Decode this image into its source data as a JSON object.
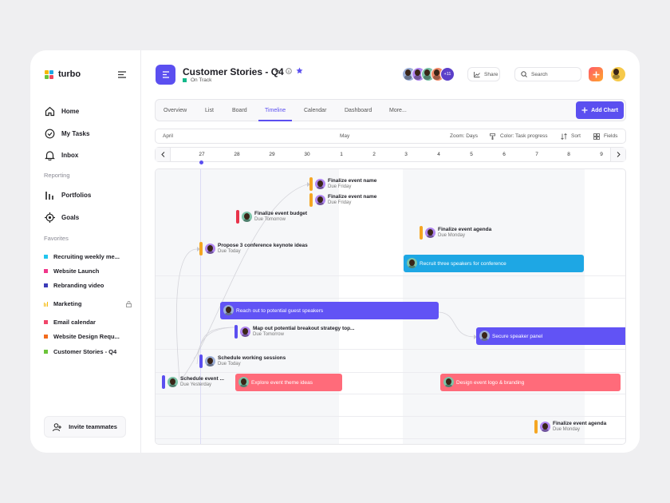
{
  "app": {
    "name": "turbo"
  },
  "sidebar": {
    "nav": [
      {
        "label": "Home",
        "icon": "home-icon"
      },
      {
        "label": "My Tasks",
        "icon": "check-circle-icon"
      },
      {
        "label": "Inbox",
        "icon": "bell-icon"
      }
    ],
    "reporting_label": "Reporting",
    "reporting": [
      {
        "label": "Portfolios",
        "icon": "bar-chart-icon"
      },
      {
        "label": "Goals",
        "icon": "target-icon"
      }
    ],
    "favorites_label": "Favorites",
    "favorites": [
      {
        "label": "Recruiting weekly me...",
        "color": "#22c5ee"
      },
      {
        "label": "Website Launch",
        "color": "#f0368a"
      },
      {
        "label": "Rebranding video",
        "color": "#3b3bb8"
      },
      {
        "label": "Marketing",
        "color": "#f5b800",
        "locked": true
      },
      {
        "label": "Email calendar",
        "color": "#f0456a"
      },
      {
        "label": "Website Design Requ...",
        "color": "#f26b1d"
      },
      {
        "label": "Customer Stories - Q4",
        "color": "#6cc43a"
      }
    ],
    "invite_label": "Invite teammates"
  },
  "header": {
    "title": "Customer Stories - Q4",
    "status": "On Track",
    "status_color": "#14b88a",
    "members_extra": "+11",
    "share": "Share",
    "search_placeholder": "Search"
  },
  "tabs": [
    {
      "label": "Overview"
    },
    {
      "label": "List"
    },
    {
      "label": "Board"
    },
    {
      "label": "Timeline",
      "active": true
    },
    {
      "label": "Calendar"
    },
    {
      "label": "Dashboard"
    },
    {
      "label": "More..."
    }
  ],
  "add_chart": "Add Chart",
  "toolbar": {
    "month1": "April",
    "month2": "May",
    "zoom": "Zoom: Days",
    "color": "Color: Task progress",
    "sort": "Sort",
    "fields": "Fields"
  },
  "days": [
    "27",
    "28",
    "29",
    "30",
    "1",
    "2",
    "3",
    "4",
    "5",
    "6",
    "7",
    "8",
    "9"
  ],
  "today": "27",
  "colors": {
    "accent": "#5b4ff0",
    "orange": "#f5a623",
    "red": "#f0455a",
    "blue": "#1ea7e4",
    "coral": "#ff6b7a"
  },
  "milestones": [
    {
      "title": "Finalize event name",
      "due": "Due Friday",
      "color": "#f5a623"
    },
    {
      "title": "Finalize event name",
      "due": "Due Friday",
      "color": "#f5a623"
    },
    {
      "title": "Finalize event budget",
      "due": "Due Tomorrow",
      "color": "#e8334a"
    },
    {
      "title": "Finalize event agenda",
      "due": "Due Monday",
      "color": "#f5a623"
    },
    {
      "title": "Propose 3 conference keynote ideas",
      "due": "Due Today",
      "color": "#f5a623"
    },
    {
      "title": "Map out potential breakout strategy top...",
      "due": "Due Tomorrow",
      "color": "#5b4ff0"
    },
    {
      "title": "Schedule working sessions",
      "due": "Due Today",
      "color": "#5b4ff0"
    },
    {
      "title": "Schedule event ...",
      "due": "Due Yesterday",
      "color": "#5b4ff0"
    },
    {
      "title": "Finalize event agenda",
      "due": "Due Monday",
      "color": "#f5a623"
    }
  ],
  "bars": [
    {
      "title": "Recruit three speakers for conference",
      "color": "#1ea7e4"
    },
    {
      "title": "Reach out to potential guest speakers",
      "color": "#6153f5"
    },
    {
      "title": "Secure speaker panel",
      "color": "#6153f5"
    },
    {
      "title": "Explore event theme ideas",
      "color": "#ff6b7a"
    },
    {
      "title": "Design event logo & branding",
      "color": "#ff6b7a"
    }
  ]
}
